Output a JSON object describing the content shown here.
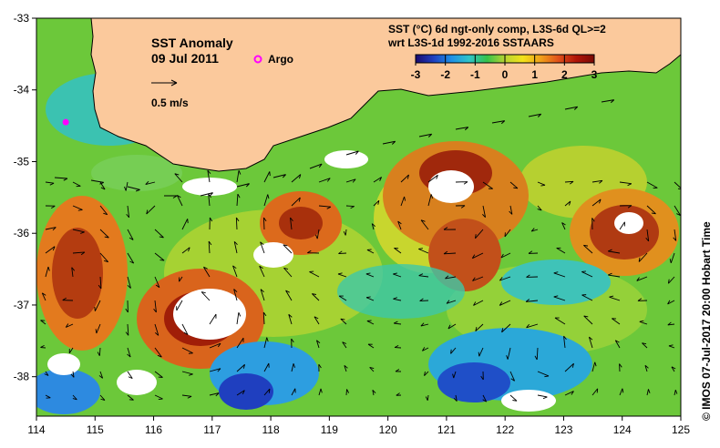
{
  "map": {
    "title": "SST Anomaly",
    "date": "09 Jul 2011",
    "argo_label": "Argo",
    "velocity_label": "0.5 m/s",
    "product_line1": "SST (°C) 6d ngt-only comp, L3S-6d QL>=2",
    "product_line2": "wrt L3S-1d 1992-2016 SSTAARS",
    "credit": "© IMOS 07-Jul-2017 20:00 Hobart Time",
    "colorbar_ticks": [
      "-3",
      "-2",
      "-1",
      "0",
      "1",
      "2",
      "3"
    ],
    "lon_ticks": [
      "114",
      "115",
      "116",
      "117",
      "118",
      "119",
      "120",
      "121",
      "122",
      "123",
      "124",
      "125"
    ],
    "lat_ticks": [
      "-33",
      "-34",
      "-35",
      "-36",
      "-37",
      "-38"
    ],
    "lon_range": [
      114,
      125
    ],
    "lat_range": [
      -38.55,
      -33
    ],
    "argo_position": [
      114.5,
      -34.45
    ],
    "colors": {
      "land": "#fbc99c",
      "colorbar": [
        "#1a0a6e",
        "#1f3fbf",
        "#1e90e6",
        "#2fc4c8",
        "#35c24a",
        "#b8d432",
        "#f2e21a",
        "#f0a01a",
        "#e0501a",
        "#b01408",
        "#7a0a04"
      ],
      "argo_marker": "#ff00ff"
    }
  }
}
